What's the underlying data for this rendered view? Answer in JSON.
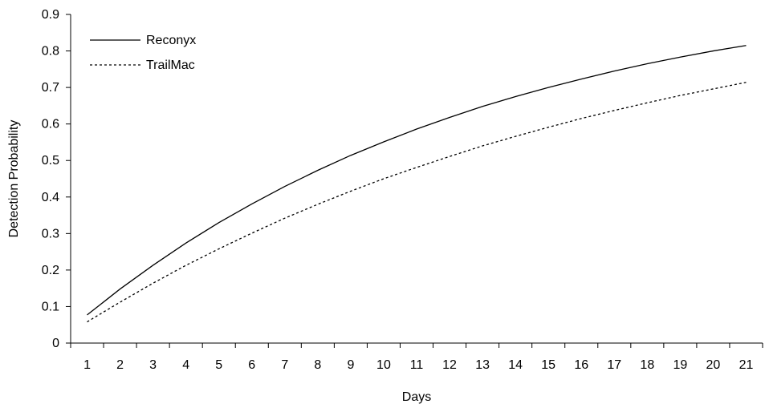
{
  "chart_data": {
    "type": "line",
    "xlabel": "Days",
    "ylabel": "Detection Probability",
    "x": [
      1,
      2,
      3,
      4,
      5,
      6,
      7,
      8,
      9,
      10,
      11,
      12,
      13,
      14,
      15,
      16,
      17,
      18,
      19,
      20,
      21
    ],
    "ylim": [
      0,
      0.9
    ],
    "yticks": [
      "0",
      "0.1",
      "0.2",
      "0.3",
      "0.4",
      "0.5",
      "0.6",
      "0.7",
      "0.8",
      "0.9"
    ],
    "grid": false,
    "legend_position": "top-left",
    "series": [
      {
        "name": "Reconyx",
        "style": "solid",
        "color": "#000000",
        "values": [
          0.077,
          0.148,
          0.213,
          0.274,
          0.33,
          0.381,
          0.429,
          0.473,
          0.514,
          0.551,
          0.586,
          0.618,
          0.648,
          0.675,
          0.7,
          0.723,
          0.745,
          0.765,
          0.783,
          0.8,
          0.815
        ]
      },
      {
        "name": "TrailMac",
        "style": "dashed",
        "color": "#000000",
        "values": [
          0.058,
          0.112,
          0.164,
          0.213,
          0.258,
          0.301,
          0.342,
          0.38,
          0.416,
          0.45,
          0.481,
          0.511,
          0.54,
          0.566,
          0.591,
          0.615,
          0.637,
          0.658,
          0.678,
          0.696,
          0.714
        ]
      }
    ]
  }
}
